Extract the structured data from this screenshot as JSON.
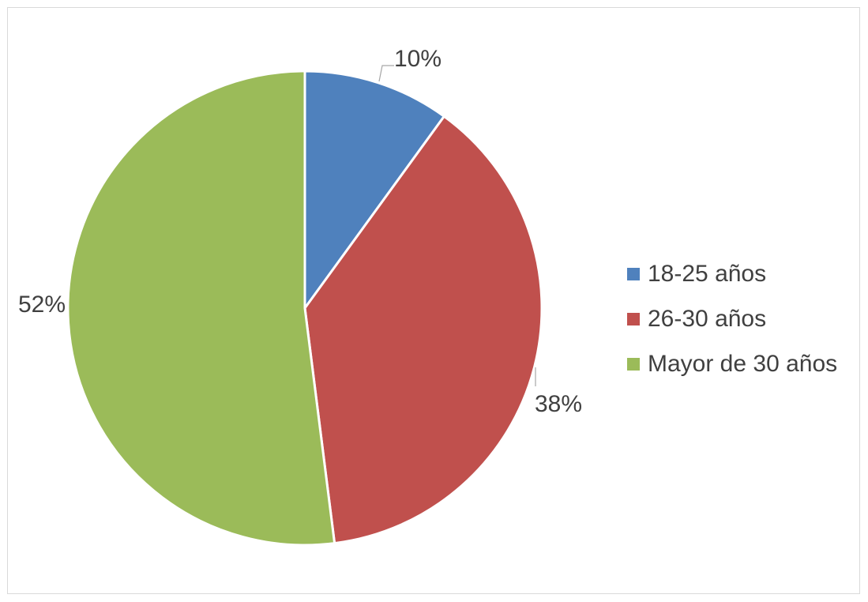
{
  "chart_data": {
    "type": "pie",
    "title": "",
    "categories": [
      "18-25 años",
      "26-30 años",
      "Mayor de 30 años"
    ],
    "values": [
      10,
      38,
      52
    ],
    "labels": [
      "10%",
      "38%",
      "52%"
    ],
    "colors": [
      "#4f81bd",
      "#c0504d",
      "#9bbb59"
    ],
    "legend": "right"
  }
}
